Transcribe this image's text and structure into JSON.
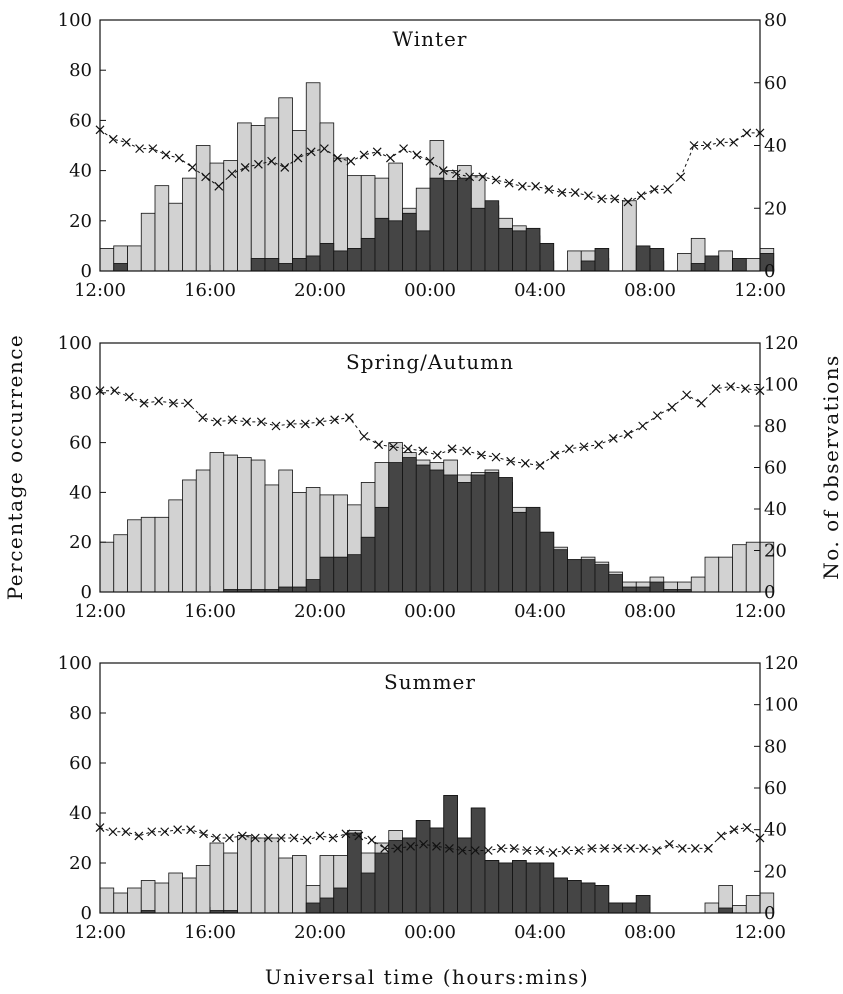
{
  "figure": {
    "left_axis_title": "Percentage occurrence",
    "right_axis_title": "No. of observations",
    "x_axis_title": "Universal time (hours:mins)",
    "x_tick_labels": [
      "12:00",
      "16:00",
      "20:00",
      "00:00",
      "04:00",
      "08:00",
      "12:00"
    ],
    "colors": {
      "light_bar": "#d2d2d2",
      "dark_bar": "#454545",
      "outline": "#111111",
      "marker": "#111111"
    }
  },
  "chart_data": [
    {
      "type": "bar",
      "title": "Winter",
      "xlabel": "Universal time (hours:mins)",
      "ylabel": "Percentage occurrence",
      "y2label": "No. of observations",
      "ylim": [
        0,
        100
      ],
      "y2lim": [
        0,
        80
      ],
      "y_ticks": [
        0,
        20,
        40,
        60,
        80,
        100
      ],
      "y2_ticks": [
        0,
        20,
        40,
        60,
        80
      ],
      "x_ticks_hours": [
        12,
        16,
        20,
        24,
        28,
        32,
        36
      ],
      "bin_width_hours": 0.5,
      "series": [
        {
          "values": [
            9,
            10,
            10,
            23,
            34,
            27,
            37,
            50,
            43,
            44,
            59,
            58,
            61,
            69,
            56,
            75,
            59,
            45,
            38,
            38,
            37,
            43,
            25,
            33,
            52,
            40,
            42,
            38,
            26,
            21,
            18,
            14,
            4,
            0,
            8,
            8,
            5,
            0,
            28,
            9,
            4,
            0,
            7,
            13,
            4,
            8,
            5,
            5,
            9
          ]
        },
        {
          "values": [
            0,
            3,
            0,
            0,
            0,
            0,
            0,
            0,
            0,
            0,
            0,
            5,
            5,
            3,
            5,
            6,
            11,
            8,
            9,
            13,
            21,
            20,
            23,
            16,
            37,
            36,
            37,
            25,
            28,
            17,
            16,
            17,
            11,
            0,
            0,
            4,
            9,
            0,
            0,
            10,
            9,
            0,
            0,
            3,
            6,
            0,
            5,
            0,
            7
          ]
        },
        {
          "values": [
            45,
            42,
            41,
            39,
            39,
            37,
            36,
            33,
            30,
            27,
            31,
            33,
            34,
            35,
            33,
            36,
            38,
            39,
            36,
            35,
            37,
            38,
            36,
            39,
            37,
            35,
            32,
            31,
            30,
            30,
            29,
            28,
            27,
            27,
            26,
            25,
            25,
            24,
            23,
            23,
            22,
            24,
            26,
            26,
            30,
            40,
            40,
            41,
            41,
            44,
            44
          ]
        }
      ]
    },
    {
      "type": "bar",
      "title": "Spring/Autumn",
      "xlabel": "Universal time (hours:mins)",
      "ylabel": "Percentage occurrence",
      "y2label": "No. of observations",
      "ylim": [
        0,
        100
      ],
      "y2lim": [
        0,
        120
      ],
      "y_ticks": [
        0,
        20,
        40,
        60,
        80,
        100
      ],
      "y2_ticks": [
        0,
        20,
        40,
        60,
        80,
        100,
        120
      ],
      "x_ticks_hours": [
        12,
        16,
        20,
        24,
        28,
        32,
        36
      ],
      "bin_width_hours": 0.5,
      "series": [
        {
          "values": [
            20,
            23,
            29,
            30,
            30,
            37,
            45,
            49,
            56,
            55,
            54,
            53,
            43,
            49,
            40,
            42,
            39,
            39,
            35,
            44,
            52,
            60,
            56,
            53,
            52,
            53,
            47,
            48,
            49,
            44,
            34,
            33,
            24,
            18,
            13,
            14,
            12,
            8,
            4,
            4,
            6,
            4,
            4,
            6,
            14,
            14,
            19,
            20,
            20
          ]
        },
        {
          "values": [
            0,
            0,
            0,
            0,
            0,
            0,
            0,
            0,
            0,
            1,
            1,
            1,
            1,
            2,
            2,
            5,
            14,
            14,
            15,
            22,
            34,
            52,
            54,
            51,
            49,
            47,
            44,
            47,
            48,
            46,
            32,
            34,
            24,
            17,
            13,
            13,
            11,
            7,
            2,
            2,
            4,
            1,
            1,
            0,
            0,
            0,
            0,
            0,
            0
          ]
        },
        {
          "values": [
            97,
            97,
            94,
            91,
            92,
            91,
            91,
            84,
            82,
            83,
            82,
            82,
            80,
            81,
            81,
            82,
            83,
            84,
            75,
            71,
            70,
            69,
            68,
            66,
            69,
            68,
            66,
            65,
            63,
            62,
            61,
            66,
            69,
            70,
            71,
            74,
            76,
            80,
            85,
            89,
            95,
            91,
            98,
            99,
            98,
            97
          ]
        }
      ]
    },
    {
      "type": "bar",
      "title": "Summer",
      "xlabel": "Universal time (hours:mins)",
      "ylabel": "Percentage occurrence",
      "y2label": "No. of observations",
      "ylim": [
        0,
        100
      ],
      "y2lim": [
        0,
        120
      ],
      "y_ticks": [
        0,
        20,
        40,
        60,
        80,
        100
      ],
      "y2_ticks": [
        0,
        20,
        40,
        60,
        80,
        100,
        120
      ],
      "x_ticks_hours": [
        12,
        16,
        20,
        24,
        28,
        32,
        36
      ],
      "bin_width_hours": 0.5,
      "series": [
        {
          "values": [
            10,
            8,
            10,
            13,
            12,
            16,
            14,
            19,
            28,
            24,
            31,
            30,
            30,
            22,
            23,
            11,
            23,
            23,
            33,
            24,
            28,
            33,
            30,
            37,
            34,
            47,
            30,
            42,
            21,
            20,
            21,
            20,
            20,
            14,
            13,
            12,
            11,
            4,
            4,
            7,
            0,
            0,
            0,
            0,
            4,
            11,
            3,
            7,
            8
          ]
        },
        {
          "values": [
            0,
            0,
            0,
            1,
            0,
            0,
            0,
            0,
            1,
            1,
            0,
            0,
            0,
            0,
            0,
            4,
            6,
            10,
            32,
            16,
            24,
            29,
            30,
            37,
            34,
            47,
            30,
            42,
            21,
            20,
            21,
            20,
            20,
            14,
            13,
            12,
            11,
            4,
            4,
            7,
            0,
            0,
            0,
            0,
            0,
            2,
            0,
            0,
            0
          ]
        },
        {
          "values": [
            41,
            39,
            39,
            37,
            39,
            39,
            40,
            40,
            38,
            36,
            36,
            37,
            36,
            36,
            36,
            36,
            35,
            37,
            36,
            38,
            37,
            35,
            31,
            31,
            32,
            33,
            32,
            31,
            30,
            30,
            30,
            31,
            31,
            30,
            30,
            29,
            30,
            30,
            31,
            31,
            31,
            31,
            31,
            30,
            33,
            31,
            31,
            31,
            37,
            40,
            41,
            36
          ]
        }
      ]
    }
  ]
}
